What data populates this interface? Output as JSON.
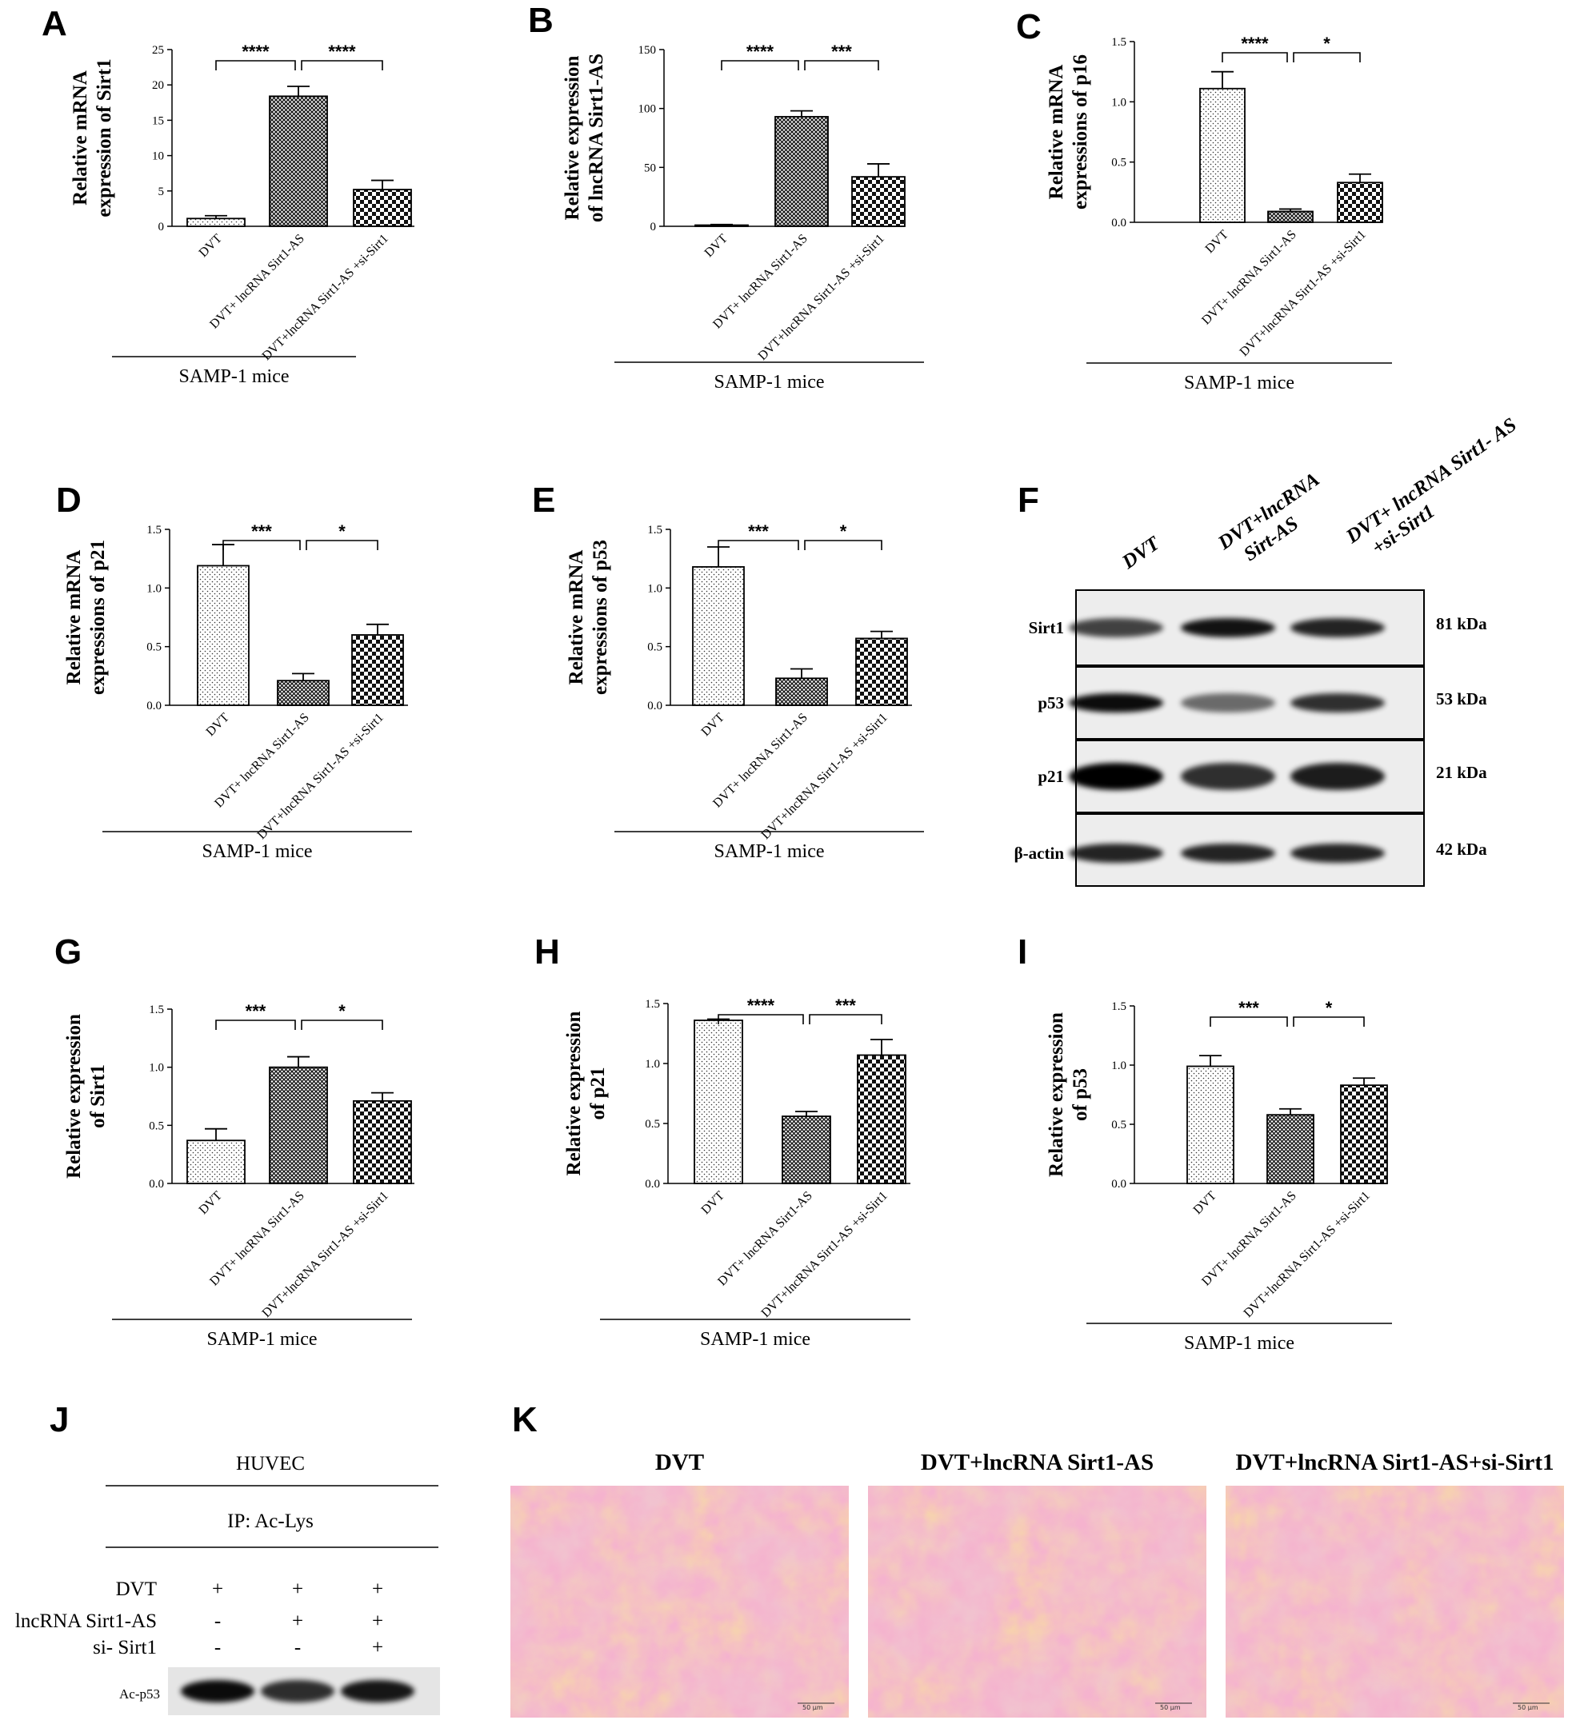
{
  "colors": {
    "ink": "#000000",
    "hatch_light": "#ffffff",
    "he_pink": "#e7739d",
    "he_orange": "#e9a76a",
    "he_purple": "#8b6db0"
  },
  "group_label": "SAMP-1  mice",
  "categories": [
    "DVT",
    "DVT+ lncRNA Sirt1-AS",
    "DVT+lncRNA Sirt1-AS +si-Sirt1"
  ],
  "chart_data": [
    {
      "panel": "A",
      "type": "bar",
      "ylabel": [
        "Relative mRNA",
        "expression of Sirt1"
      ],
      "ylim": [
        0,
        25
      ],
      "ticks": [
        "0",
        "5",
        "10",
        "15",
        "20",
        "25"
      ],
      "tick_values": [
        0,
        5,
        10,
        15,
        20,
        25
      ],
      "values": [
        1.1,
        18.4,
        5.2
      ],
      "errors": [
        0.4,
        1.4,
        1.3
      ],
      "sig": [
        "****",
        "****"
      ]
    },
    {
      "panel": "B",
      "type": "bar",
      "ylabel": [
        "Relative  expression",
        "of lncRNA Sirt1-AS"
      ],
      "ylim": [
        0,
        150
      ],
      "ticks": [
        "0",
        "50",
        "100",
        "150"
      ],
      "tick_values": [
        0,
        50,
        100,
        150
      ],
      "values": [
        1.0,
        93,
        42
      ],
      "errors": [
        0.5,
        5,
        11
      ],
      "sig": [
        "****",
        "***"
      ]
    },
    {
      "panel": "C",
      "type": "bar",
      "ylabel": [
        "Relative mRNA",
        "expressions of p16"
      ],
      "ylim": [
        0,
        1.5
      ],
      "ticks": [
        "0.0",
        "0.5",
        "1.0",
        "1.5"
      ],
      "tick_values": [
        0,
        0.5,
        1.0,
        1.5
      ],
      "values": [
        1.11,
        0.09,
        0.33
      ],
      "errors": [
        0.14,
        0.02,
        0.07
      ],
      "sig": [
        "****",
        "*"
      ]
    },
    {
      "panel": "D",
      "type": "bar",
      "ylabel": [
        "Relative mRNA",
        "expressions of p21"
      ],
      "ylim": [
        0,
        1.5
      ],
      "ticks": [
        "0.0",
        "0.5",
        "1.0",
        "1.5"
      ],
      "tick_values": [
        0,
        0.5,
        1.0,
        1.5
      ],
      "values": [
        1.19,
        0.21,
        0.6
      ],
      "errors": [
        0.18,
        0.06,
        0.09
      ],
      "sig": [
        "***",
        "*"
      ]
    },
    {
      "panel": "E",
      "type": "bar",
      "ylabel": [
        "Relative mRNA",
        "expressions of p53"
      ],
      "ylim": [
        0,
        1.5
      ],
      "ticks": [
        "0.0",
        "0.5",
        "1.0",
        "1.5"
      ],
      "tick_values": [
        0,
        0.5,
        1.0,
        1.5
      ],
      "values": [
        1.18,
        0.23,
        0.57
      ],
      "errors": [
        0.17,
        0.08,
        0.06
      ],
      "sig": [
        "***",
        "*"
      ]
    },
    {
      "panel": "G",
      "type": "bar",
      "ylabel": [
        "Relative  expression",
        "of Sirt1"
      ],
      "ylim": [
        0,
        1.5
      ],
      "ticks": [
        "0.0",
        "0.5",
        "1.0",
        "1.5"
      ],
      "tick_values": [
        0,
        0.5,
        1.0,
        1.5
      ],
      "values": [
        0.37,
        1.0,
        0.71
      ],
      "errors": [
        0.1,
        0.09,
        0.07
      ],
      "sig": [
        "***",
        "*"
      ]
    },
    {
      "panel": "H",
      "type": "bar",
      "ylabel": [
        "Relative expression",
        "of p21"
      ],
      "ylim": [
        0,
        1.5
      ],
      "ticks": [
        "0.0",
        "0.5",
        "1.0",
        "1.5"
      ],
      "tick_values": [
        0,
        0.5,
        1.0,
        1.5
      ],
      "values": [
        1.36,
        0.56,
        1.07
      ],
      "errors": [
        0.01,
        0.04,
        0.13
      ],
      "sig": [
        "****",
        "***"
      ]
    },
    {
      "panel": "I",
      "type": "bar",
      "ylabel": [
        "Relative  expression",
        "of p53"
      ],
      "ylim": [
        0,
        1.5
      ],
      "ticks": [
        "0.0",
        "0.5",
        "1.0",
        "1.5"
      ],
      "tick_values": [
        0,
        0.5,
        1.0,
        1.5
      ],
      "values": [
        0.99,
        0.58,
        0.83
      ],
      "errors": [
        0.09,
        0.05,
        0.06
      ],
      "sig": [
        "***",
        "*"
      ]
    }
  ],
  "panel_f": {
    "label": "F",
    "headers": [
      [
        "DVT"
      ],
      [
        "DVT+lncRNA",
        "Sirt-AS"
      ],
      [
        "DVT+ lncRNA Sirt1- AS",
        "+si-Sirt1"
      ]
    ],
    "rows": [
      {
        "protein": "Sirt1",
        "kda": "81 kDa",
        "intensity": [
          0.72,
          0.92,
          0.85
        ]
      },
      {
        "protein": "p53",
        "kda": "53 kDa",
        "intensity": [
          0.95,
          0.55,
          0.8
        ]
      },
      {
        "protein": "p21",
        "kda": "21 kDa",
        "intensity": [
          1.0,
          0.8,
          0.88
        ]
      },
      {
        "protein": "β-actin",
        "kda": "42 kDa",
        "intensity": [
          0.85,
          0.85,
          0.85
        ]
      }
    ]
  },
  "panel_j": {
    "label": "J",
    "cell": "HUVEC",
    "ip": "IP: Ac-Lys",
    "rows": [
      {
        "name": "DVT",
        "marks": [
          "+",
          "+",
          "+"
        ]
      },
      {
        "name": "lncRNA Sirt1-AS",
        "marks": [
          "-",
          "+",
          "+"
        ]
      },
      {
        "name": "si- Sirt1",
        "marks": [
          "-",
          "-",
          "+"
        ]
      }
    ],
    "blot_label": "Ac-p53",
    "intensity": [
      0.95,
      0.8,
      0.9
    ]
  },
  "panel_k": {
    "label": "K",
    "titles": [
      "DVT",
      "DVT+lncRNA Sirt1-AS",
      "DVT+lncRNA Sirt1-AS+si-Sirt1"
    ],
    "scale_text": "50 μm"
  }
}
